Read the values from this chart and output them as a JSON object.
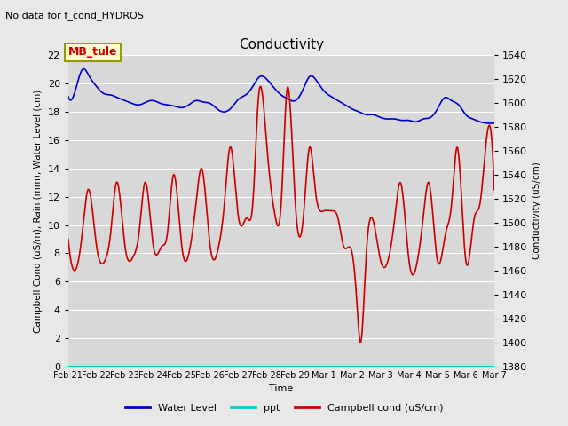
{
  "title": "Conductivity",
  "subtitle": "No data for f_cond_HYDROS",
  "xlabel": "Time",
  "ylabel_left": "Campbell Cond (uS/m), Rain (mm), Water Level (cm)",
  "ylabel_right": "Conductivity (uS/cm)",
  "ylim_left": [
    0,
    22
  ],
  "ylim_right": [
    1380,
    1640
  ],
  "background_color": "#e8e8e8",
  "plot_bg_color": "#d8d8d8",
  "grid_color": "#ffffff",
  "x_tick_labels": [
    "Feb 21",
    "Feb 22",
    "Feb 23",
    "Feb 24",
    "Feb 25",
    "Feb 26",
    "Feb 27",
    "Feb 28",
    "Feb 29",
    "Mar 1",
    "Mar 2",
    "Mar 3",
    "Mar 4",
    "Mar 5",
    "Mar 6",
    "Mar 7"
  ],
  "water_level_color": "#0000cc",
  "ppt_color": "#00cccc",
  "campbell_color": "#cc0000",
  "annotation_text": "MB_tule",
  "annotation_color": "#cc0000",
  "annotation_bg": "#ffffcc",
  "annotation_border": "#999900",
  "wl_x": [
    0,
    0.25,
    0.5,
    0.75,
    1,
    1.25,
    1.5,
    1.75,
    2,
    2.25,
    2.5,
    2.75,
    3,
    3.25,
    3.5,
    3.75,
    4,
    4.25,
    4.5,
    4.75,
    5,
    5.25,
    5.5,
    5.75,
    6,
    6.25,
    6.5,
    6.75,
    7,
    7.25,
    7.5,
    7.75,
    8,
    8.25,
    8.5,
    8.75,
    9,
    9.25,
    9.5,
    9.75,
    10,
    10.25,
    10.5,
    10.75,
    11,
    11.25,
    11.5,
    11.75,
    12,
    12.25,
    12.5,
    12.75,
    13,
    13.25,
    13.5,
    13.75,
    14,
    14.25,
    14.5,
    14.75,
    15
  ],
  "wl_y": [
    19.1,
    19.5,
    21.0,
    20.5,
    19.8,
    19.3,
    19.2,
    19.0,
    18.8,
    18.6,
    18.5,
    18.7,
    18.8,
    18.6,
    18.5,
    18.4,
    18.3,
    18.5,
    18.8,
    18.7,
    18.6,
    18.2,
    18.0,
    18.3,
    18.9,
    19.2,
    19.8,
    20.5,
    20.3,
    19.7,
    19.2,
    18.9,
    18.8,
    19.5,
    20.5,
    20.2,
    19.5,
    19.1,
    18.8,
    18.5,
    18.2,
    18.0,
    17.8,
    17.8,
    17.6,
    17.5,
    17.5,
    17.4,
    17.4,
    17.3,
    17.5,
    17.6,
    18.2,
    19.0,
    18.8,
    18.5,
    17.8,
    17.5,
    17.3,
    17.2,
    17.2
  ],
  "camp_x": [
    0,
    0.3,
    0.5,
    0.7,
    1.0,
    1.3,
    1.5,
    1.7,
    2.0,
    2.3,
    2.5,
    2.7,
    3.0,
    3.3,
    3.5,
    3.7,
    4.0,
    4.3,
    4.5,
    4.7,
    5.0,
    5.3,
    5.5,
    5.7,
    6.0,
    6.3,
    6.5,
    6.7,
    7.0,
    7.3,
    7.5,
    7.7,
    8.0,
    8.3,
    8.5,
    8.7,
    9.0,
    9.3,
    9.5,
    9.7,
    10.0,
    10.15,
    10.3,
    10.5,
    10.7,
    11.0,
    11.3,
    11.5,
    11.7,
    12.0,
    12.3,
    12.5,
    12.7,
    13.0,
    13.3,
    13.5,
    13.7,
    14.0,
    14.3,
    14.5,
    14.7,
    15.0
  ],
  "camp_y": [
    9.0,
    7.0,
    9.5,
    12.5,
    8.5,
    7.5,
    9.5,
    13.0,
    8.5,
    7.8,
    9.5,
    13.0,
    8.5,
    8.5,
    9.5,
    13.5,
    8.5,
    8.5,
    11.5,
    14.0,
    8.5,
    8.5,
    11.5,
    15.5,
    10.5,
    10.5,
    11.5,
    19.0,
    15.5,
    10.5,
    11.5,
    19.5,
    11.5,
    11.0,
    15.5,
    12.5,
    11.0,
    11.0,
    10.5,
    8.5,
    8.0,
    5.0,
    1.7,
    8.0,
    10.5,
    7.5,
    7.8,
    10.5,
    13.0,
    7.5,
    7.5,
    10.5,
    13.0,
    7.5,
    9.5,
    11.5,
    15.5,
    7.5,
    10.5,
    11.5,
    15.5,
    12.5
  ]
}
